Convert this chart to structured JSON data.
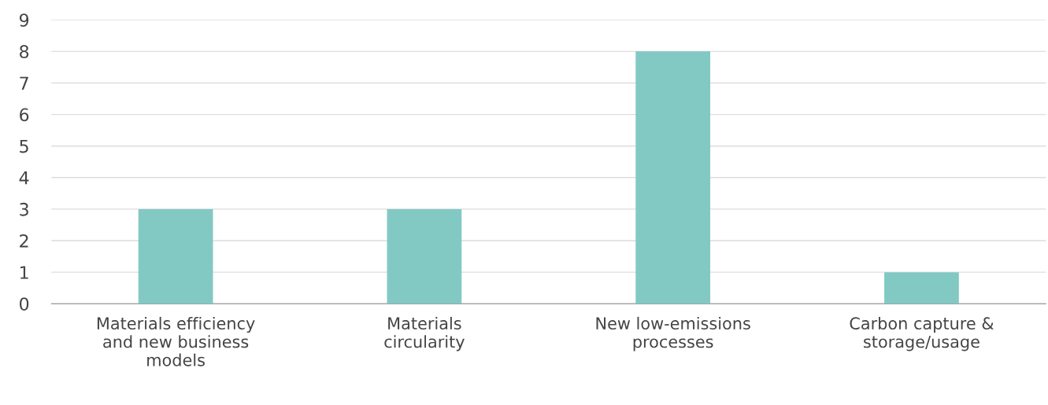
{
  "chart_data": {
    "type": "bar",
    "categories": [
      "Materials efficiency and new business models",
      "Materials circularity",
      "New low-emissions processes",
      "Carbon capture & storage/usage"
    ],
    "values": [
      3,
      3,
      8,
      1
    ],
    "color": "#82c9c4",
    "ylim": [
      0,
      9
    ],
    "yticks": [
      0,
      1,
      2,
      3,
      4,
      5,
      6,
      7,
      8,
      9
    ],
    "grid": "y"
  }
}
